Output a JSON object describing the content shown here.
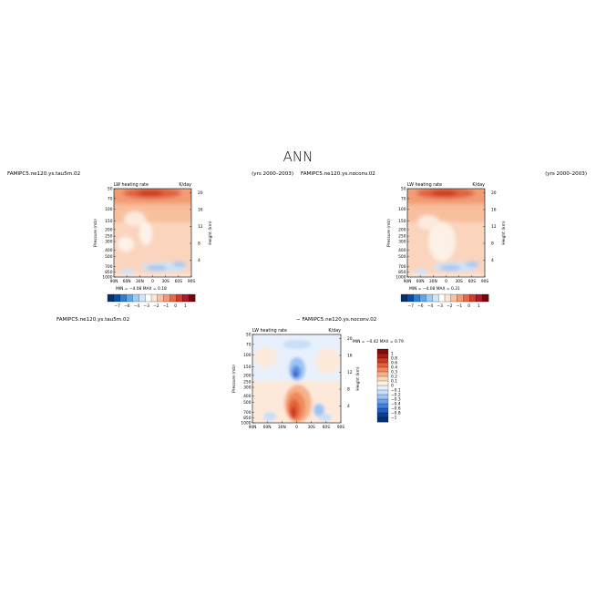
{
  "figure": {
    "title": "ANN"
  },
  "colors": {
    "cmap_top": [
      "#08306b",
      "#084ea2",
      "#2c7fd0",
      "#5fa6e8",
      "#9ecbf4",
      "#cfe5fa",
      "#ffffff",
      "#fde6d6",
      "#f8c1a0",
      "#f39a70",
      "#e8684a",
      "#d23a2a",
      "#b2182b",
      "#7a0010"
    ],
    "cmap_diff": [
      "#08306b",
      "#0a3f94",
      "#1f5fc0",
      "#3f82de",
      "#6aa3ec",
      "#9cc5f4",
      "#c8dff9",
      "#e6f0fc",
      "#fff2e6",
      "#fbd8bc",
      "#f6b18b",
      "#ef8a5d",
      "#e3603c",
      "#cc3a24",
      "#a51c13",
      "#7f0a0a"
    ]
  },
  "chart_data": [
    {
      "type": "heatmap",
      "case_label": "FAMIPC5.ne120.ys.tau5m.02",
      "years_label": "(yrs 2000–2003)",
      "field_label": "LW heating rate",
      "units": "K/day",
      "xlabel": "",
      "ylabel": "Pressure (mb)",
      "y2label": "Height (km)",
      "x_ticks": [
        "90N",
        "60N",
        "30N",
        "0",
        "30S",
        "60S",
        "90S"
      ],
      "y_ticks": [
        "1000",
        "850",
        "700",
        "500",
        "400",
        "300",
        "250",
        "200",
        "150",
        "100",
        "70",
        "50"
      ],
      "y2_ticks": [
        "4",
        "8",
        "12",
        "16",
        "20"
      ],
      "min_max_text": "MIN =  −4.08   MAX =   0.18",
      "min": -4.08,
      "max": 0.18,
      "colorbar_ticks": [
        "−7",
        "−6",
        "−4",
        "−3",
        "−2",
        "−1",
        "0",
        "1"
      ]
    },
    {
      "type": "heatmap",
      "case_label": "FAMIPC5.ne120.ys.noconv.02",
      "years_label": "(yrs 2000–2003)",
      "field_label": "LW heating rate",
      "units": "K/day",
      "xlabel": "",
      "ylabel": "Pressure (mb)",
      "y2label": "Height (km)",
      "x_ticks": [
        "90N",
        "60N",
        "30N",
        "0",
        "30S",
        "60S",
        "90S"
      ],
      "y_ticks": [
        "1000",
        "850",
        "700",
        "500",
        "400",
        "300",
        "250",
        "200",
        "150",
        "100",
        "70",
        "50"
      ],
      "y2_ticks": [
        "4",
        "8",
        "12",
        "16",
        "20"
      ],
      "min_max_text": "MIN =  −4.08   MAX =   0.31",
      "min": -4.08,
      "max": 0.31,
      "colorbar_ticks": [
        "−7",
        "−6",
        "−4",
        "−3",
        "−2",
        "−1",
        "0",
        "1"
      ]
    },
    {
      "type": "heatmap",
      "case_label": "FAMIPC5.ne120.ys.tau5m.02",
      "diff_label": "− FAMIPC5.ne120.ys.noconv.02",
      "field_label": "LW heating rate",
      "units": "K/day",
      "xlabel": "",
      "ylabel": "Pressure (mb)",
      "y2label": "Height (km)",
      "x_ticks": [
        "90N",
        "60N",
        "30N",
        "0",
        "30S",
        "60S",
        "90S"
      ],
      "y_ticks": [
        "1000",
        "850",
        "700",
        "500",
        "400",
        "300",
        "250",
        "200",
        "150",
        "100",
        "70",
        "50"
      ],
      "y2_ticks": [
        "4",
        "8",
        "12",
        "16",
        "20"
      ],
      "min_max_text": "MIN =  −0.42   MAX =   0.79",
      "min": -0.42,
      "max": 0.79,
      "colorbar_ticks": [
        "1",
        "0.8",
        "0.6",
        "0.4",
        "0.3",
        "0.2",
        "0.1",
        "0",
        "−0.1",
        "−0.2",
        "−0.3",
        "−0.4",
        "−0.6",
        "−0.8",
        "−1"
      ]
    }
  ]
}
